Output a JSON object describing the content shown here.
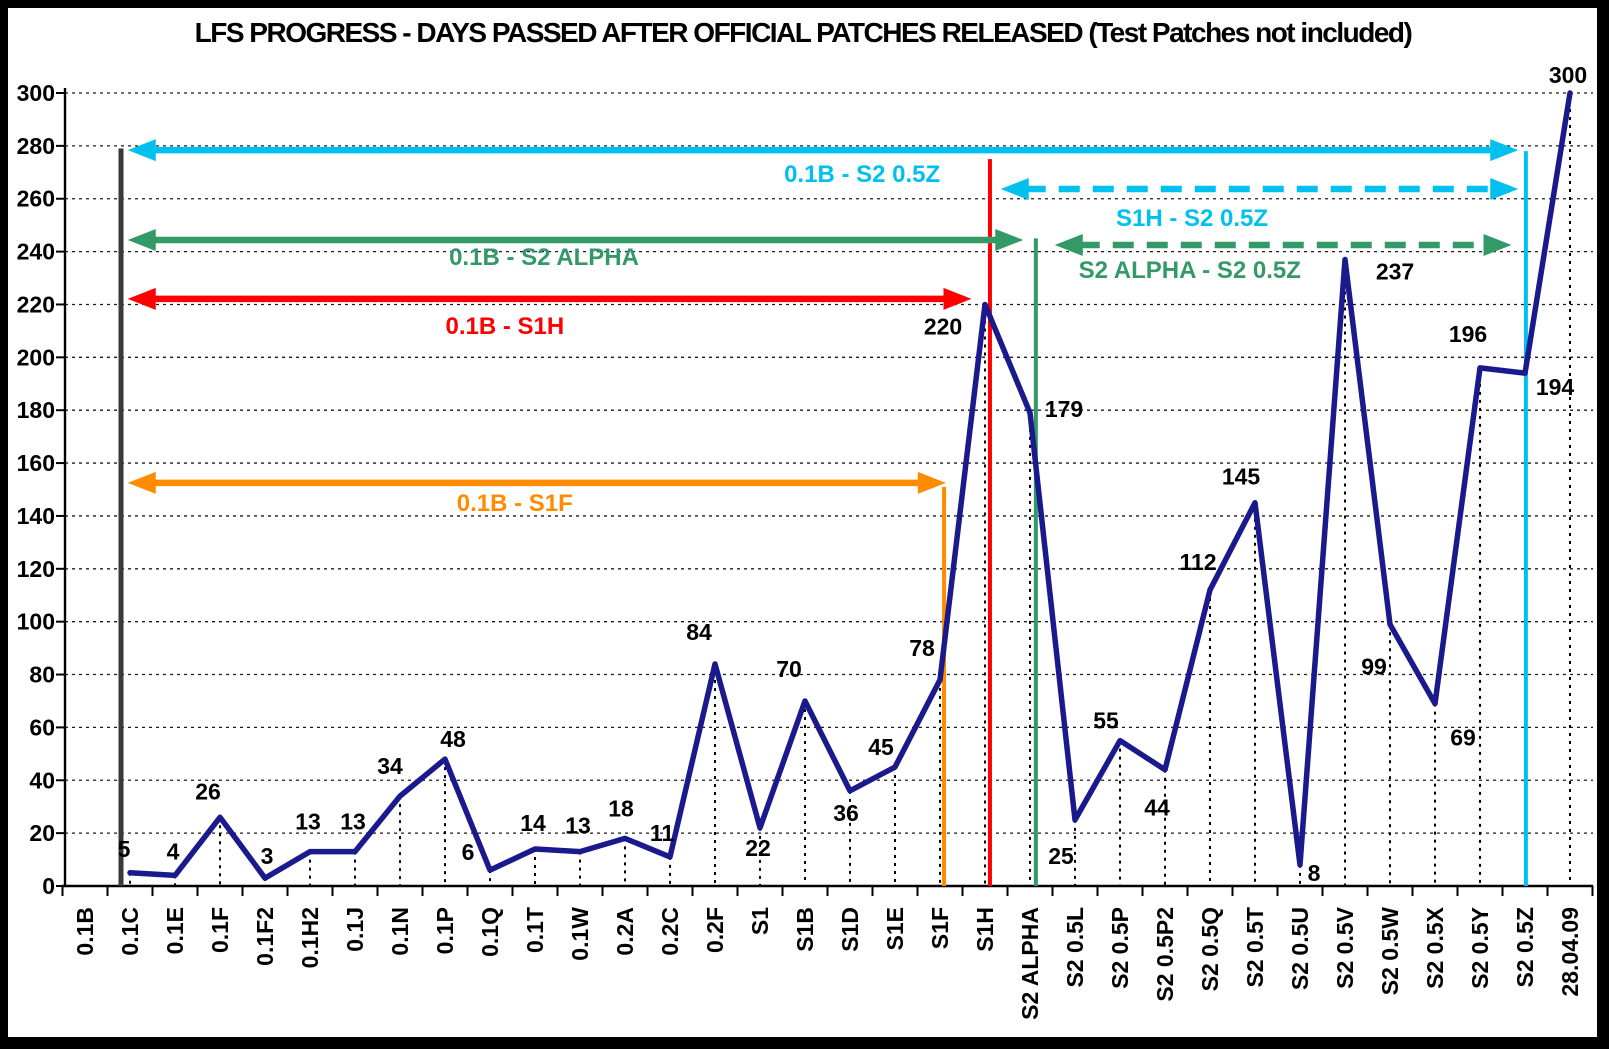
{
  "title": "LFS PROGRESS - DAYS PASSED AFTER OFFICIAL PATCHES RELEASED (Test Patches not included)",
  "colors": {
    "series_line": "#1A1A8C",
    "cyan": "#00C0F0",
    "green": "#339966",
    "red": "#FF0000",
    "orange": "#FF8C00",
    "baseline_marker": "#3A3A3A",
    "background": "#FFFFFF",
    "frame": "#000000",
    "text": "#000000"
  },
  "chart_data": {
    "type": "line",
    "title": "LFS PROGRESS - DAYS PASSED AFTER OFFICIAL PATCHES RELEASED (Test Patches not included)",
    "xlabel": "",
    "ylabel": "",
    "ylim": [
      0,
      300
    ],
    "ytick_step": 20,
    "grid": "dotted-horizontal",
    "legend": "none",
    "categories": [
      "0.1B",
      "0.1C",
      "0.1E",
      "0.1F",
      "0.1F2",
      "0.1H2",
      "0.1J",
      "0.1N",
      "0.1P",
      "0.1Q",
      "0.1T",
      "0.1W",
      "0.2A",
      "0.2C",
      "0.2F",
      "S1",
      "S1B",
      "S1D",
      "S1E",
      "S1F",
      "S1H",
      "S2 ALPHA",
      "S2 0.5L",
      "S2 0.5P",
      "S2 0.5P2",
      "S2 0.5Q",
      "S2 0.5T",
      "S2 0.5U",
      "S2 0.5V",
      "S2 0.5W",
      "S2 0.5X",
      "S2 0.5Y",
      "S2 0.5Z",
      "28.04.09"
    ],
    "values": [
      null,
      5,
      4,
      26,
      3,
      13,
      13,
      34,
      48,
      6,
      14,
      13,
      18,
      11,
      84,
      22,
      70,
      36,
      45,
      78,
      220,
      179,
      25,
      55,
      44,
      112,
      145,
      8,
      237,
      99,
      69,
      196,
      194,
      300
    ],
    "value_labels_shown": true
  },
  "value_label_offsets": [
    null,
    [
      -6,
      -24
    ],
    [
      -2,
      -24
    ],
    [
      -12,
      -26
    ],
    [
      2,
      -22
    ],
    [
      -2,
      -30
    ],
    [
      -2,
      -30
    ],
    [
      -10,
      -30
    ],
    [
      8,
      -20
    ],
    [
      -22,
      -18
    ],
    [
      -2,
      -26
    ],
    [
      -2,
      -26
    ],
    [
      -4,
      -30
    ],
    [
      -8,
      -24
    ],
    [
      -16,
      -32
    ],
    [
      -2,
      20
    ],
    [
      -16,
      -32
    ],
    [
      -4,
      22
    ],
    [
      -14,
      -20
    ],
    [
      -18,
      -32
    ],
    [
      -42,
      22
    ],
    [
      34,
      -4
    ],
    [
      -14,
      36
    ],
    [
      -14,
      -20
    ],
    [
      -8,
      38
    ],
    [
      -12,
      -28
    ],
    [
      -14,
      -26
    ],
    [
      14,
      8
    ],
    [
      50,
      12
    ],
    [
      -16,
      42
    ],
    [
      28,
      34
    ],
    [
      -12,
      -34
    ],
    [
      30,
      14
    ],
    [
      -2,
      -18
    ]
  ],
  "annotations": {
    "vlines": [
      {
        "name": "baseline-0.1B",
        "color": "#3A3A3A",
        "x_cat": 0.8,
        "top_value": 279,
        "width": 5
      },
      {
        "name": "S1F-line",
        "color": "#FF8C00",
        "x_cat": 19.09,
        "top_value": 151,
        "width": 4
      },
      {
        "name": "S1H-line",
        "color": "#FF0000",
        "x_cat": 20.11,
        "top_value": 275,
        "width": 4
      },
      {
        "name": "S2-ALPHA-line",
        "color": "#339966",
        "x_cat": 21.13,
        "top_value": 245,
        "width": 4
      },
      {
        "name": "S2-05Z-line",
        "color": "#00C0F0",
        "x_cat": 32.02,
        "top_value": 278,
        "width": 4
      }
    ],
    "arrows": [
      {
        "label": "0.1B - S2 0.5Z",
        "color": "#00C0F0",
        "dashed": false,
        "value": 278.4,
        "from_cat": 0.95,
        "to_cat": 31.85,
        "label_cat": 17.27,
        "label_value": 269.4
      },
      {
        "label": "S1H - S2 0.5Z",
        "color": "#00C0F0",
        "dashed": true,
        "value": 263.7,
        "from_cat": 20.35,
        "to_cat": 31.85,
        "label_cat": 24.6,
        "label_value": 252.7
      },
      {
        "label": "0.1B - S2 ALPHA",
        "color": "#339966",
        "dashed": false,
        "value": 244.4,
        "from_cat": 0.95,
        "to_cat": 20.85,
        "label_cat": 10.2,
        "label_value": 238.0
      },
      {
        "label": "S2 ALPHA - S2 0.5Z",
        "color": "#339966",
        "dashed": true,
        "value": 242.5,
        "from_cat": 21.55,
        "to_cat": 31.7,
        "label_cat": 24.55,
        "label_value": 233.0
      },
      {
        "label": "0.1B - S1H",
        "color": "#FF0000",
        "dashed": false,
        "value": 222.1,
        "from_cat": 0.95,
        "to_cat": 19.7,
        "label_cat": 9.33,
        "label_value": 211.9
      },
      {
        "label": "0.1B - S1F",
        "color": "#FF8C00",
        "dashed": false,
        "value": 152.5,
        "from_cat": 0.95,
        "to_cat": 19.13,
        "label_cat": 9.55,
        "label_value": 144.9
      }
    ]
  },
  "y_axis_ticks": [
    "0",
    "20",
    "40",
    "60",
    "80",
    "100",
    "120",
    "140",
    "160",
    "180",
    "200",
    "220",
    "240",
    "260",
    "280",
    "300"
  ]
}
